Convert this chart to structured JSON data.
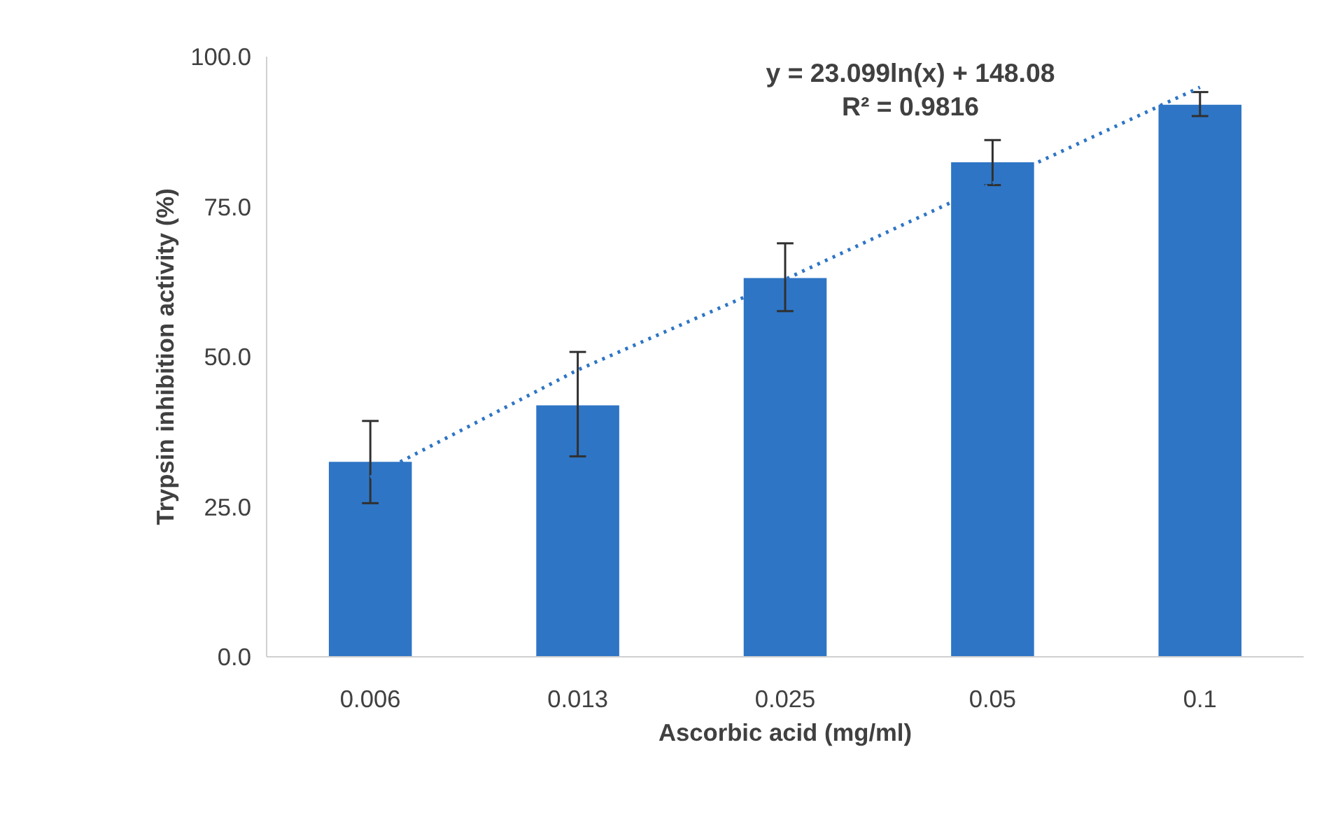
{
  "chart_data": {
    "type": "bar",
    "xlabel": "Ascorbic acid (mg/ml)",
    "ylabel": "Trypsin inhibition activity (%)",
    "categories": [
      "0.006",
      "0.013",
      "0.025",
      "0.05",
      "0.1"
    ],
    "series": [
      {
        "color": "#2e75c5",
        "values": [
          32.5,
          41.9,
          63.1,
          82.4,
          92.0
        ],
        "errors": [
          [
            25.6,
            39.3
          ],
          [
            33.4,
            50.8
          ],
          [
            57.6,
            68.9
          ],
          [
            78.6,
            86.1
          ],
          [
            90.1,
            94.1
          ]
        ]
      },
      {
        "type": "line",
        "color": "#2e75c5",
        "line_style": "dotted",
        "x": [
          "0.006",
          "0.013",
          "0.025",
          "0.05",
          "0.1"
        ],
        "values": [
          29.9,
          47.8,
          62.9,
          78.9,
          94.9
        ]
      }
    ],
    "annotations": [
      "y = 23.099ln(x) + 148.08",
      "R² = 0.9816"
    ],
    "ylim": [
      0,
      100
    ],
    "yticks": [
      {
        "value": 0,
        "label": "0.0"
      },
      {
        "value": 25,
        "label": "25.0"
      },
      {
        "value": 50,
        "label": "50.0"
      },
      {
        "value": 75,
        "label": "75.0"
      },
      {
        "value": 100,
        "label": "100.0"
      }
    ],
    "grid": false
  }
}
